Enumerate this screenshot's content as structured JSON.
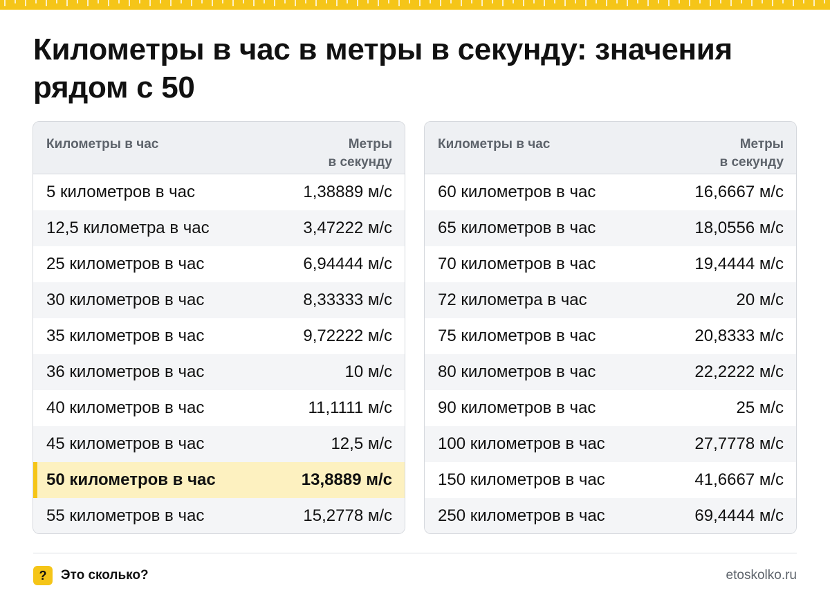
{
  "title": "Километры в час в метры в секунду: значения рядом с 50",
  "colors": {
    "accent": "#f5c518",
    "highlight_bg": "#fdf1c0",
    "header_bg": "#eef0f3",
    "muted_text": "#5d636b"
  },
  "table_header": {
    "kmh": "Километры в час",
    "ms_line1": "Метры",
    "ms_line2": "в секунду"
  },
  "left_rows": [
    {
      "kmh": "5 километров в час",
      "ms": "1,38889 м/с"
    },
    {
      "kmh": "12,5 километра в час",
      "ms": "3,47222 м/с"
    },
    {
      "kmh": "25 километров в час",
      "ms": "6,94444 м/с"
    },
    {
      "kmh": "30 километров в час",
      "ms": "8,33333 м/с"
    },
    {
      "kmh": "35 километров в час",
      "ms": "9,72222 м/с"
    },
    {
      "kmh": "36 километров в час",
      "ms": "10 м/с"
    },
    {
      "kmh": "40 километров в час",
      "ms": "11,1111 м/с"
    },
    {
      "kmh": "45 километров в час",
      "ms": "12,5 м/с"
    },
    {
      "kmh": "50 километров в час",
      "ms": "13,8889 м/с"
    },
    {
      "kmh": "55 километров в час",
      "ms": "15,2778 м/с"
    }
  ],
  "right_rows": [
    {
      "kmh": "60 километров в час",
      "ms": "16,6667 м/с"
    },
    {
      "kmh": "65 километров в час",
      "ms": "18,0556 м/с"
    },
    {
      "kmh": "70 километров в час",
      "ms": "19,4444 м/с"
    },
    {
      "kmh": "72 километра в час",
      "ms": "20 м/с"
    },
    {
      "kmh": "75 километров в час",
      "ms": "20,8333 м/с"
    },
    {
      "kmh": "80 километров в час",
      "ms": "22,2222 м/с"
    },
    {
      "kmh": "90 километров в час",
      "ms": "25 м/с"
    },
    {
      "kmh": "100 километров в час",
      "ms": "27,7778 м/с"
    },
    {
      "kmh": "150 километров в час",
      "ms": "41,6667 м/с"
    },
    {
      "kmh": "250 километров в час",
      "ms": "69,4444 м/с"
    }
  ],
  "footer": {
    "badge": "?",
    "badge_icon": "question-mark-icon",
    "brand": "Это сколько?",
    "site": "etoskolko.ru"
  }
}
